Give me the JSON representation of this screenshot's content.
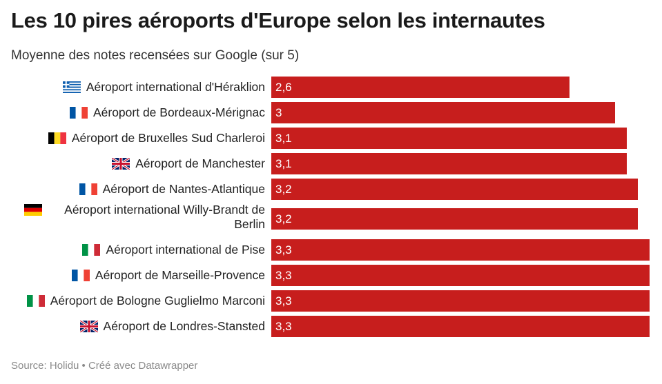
{
  "title": "Les 10 pires aéroports d'Europe selon les internautes",
  "subtitle": "Moyenne des notes recensées sur Google (sur 5)",
  "footer": "Source: Holidu • Créé avec Datawrapper",
  "colors": {
    "bar": "#c71e1d",
    "value_text": "#ffffff"
  },
  "chart_data": {
    "type": "bar",
    "orientation": "horizontal",
    "categories": [
      "Aéroport international d'Héraklion",
      "Aéroport de Bordeaux-Mérignac",
      "Aéroport de Bruxelles Sud Charleroi",
      "Aéroport de Manchester",
      "Aéroport de Nantes-Atlantique",
      "Aéroport international Willy-Brandt de Berlin",
      "Aéroport international de Pise",
      "Aéroport de Marseille-Provence",
      "Aéroport de Bologne Guglielmo Marconi",
      "Aéroport de Londres-Stansted"
    ],
    "values": [
      2.6,
      3,
      3.1,
      3.1,
      3.2,
      3.2,
      3.3,
      3.3,
      3.3,
      3.3
    ],
    "value_labels": [
      "2,6",
      "3",
      "3,1",
      "3,1",
      "3,2",
      "3,2",
      "3,3",
      "3,3",
      "3,3",
      "3,3"
    ],
    "flags": [
      "greece-flag",
      "france-flag",
      "belgium-flag",
      "uk-flag",
      "france-flag",
      "germany-flag",
      "italy-flag",
      "france-flag",
      "italy-flag",
      "uk-flag"
    ],
    "xlim": [
      0,
      3.3
    ],
    "grid": false,
    "legend": "none"
  }
}
